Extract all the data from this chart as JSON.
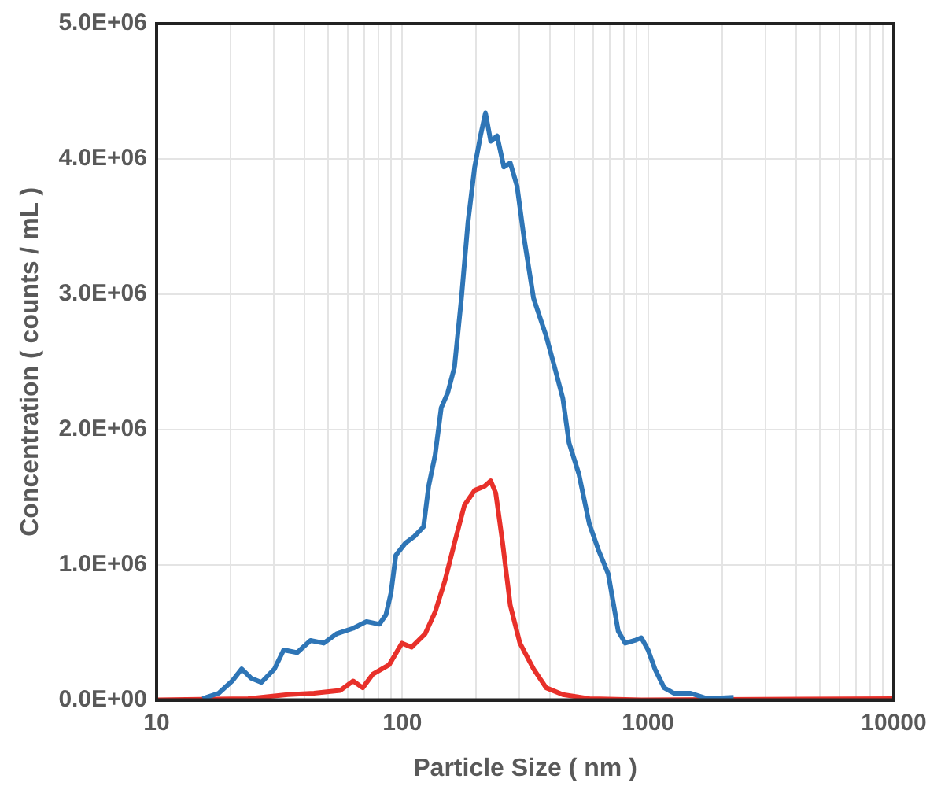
{
  "chart_data": {
    "type": "line",
    "xlabel": "Particle Size ( nm )",
    "ylabel": "Concentration ( counts / mL )",
    "log": "x",
    "grid": true,
    "legend": false,
    "marker": "none",
    "line_style": "solid",
    "xlim": [
      10,
      10000
    ],
    "xticks": [
      10,
      {
        "value": 20,
        "label": null
      },
      {
        "value": 30,
        "label": null
      },
      {
        "value": 40,
        "label": null
      },
      {
        "value": 50,
        "label": null
      },
      {
        "value": 60,
        "label": null
      },
      {
        "value": 70,
        "label": null
      },
      {
        "value": 80,
        "label": null
      },
      {
        "value": 90,
        "label": null
      },
      100,
      {
        "value": 200,
        "label": null
      },
      {
        "value": 300,
        "label": null
      },
      {
        "value": 400,
        "label": null
      },
      {
        "value": 500,
        "label": null
      },
      {
        "value": 600,
        "label": null
      },
      {
        "value": 700,
        "label": null
      },
      {
        "value": 800,
        "label": null
      },
      {
        "value": 900,
        "label": null
      },
      1000,
      {
        "value": 2000,
        "label": null
      },
      {
        "value": 3000,
        "label": null
      },
      {
        "value": 4000,
        "label": null
      },
      {
        "value": 5000,
        "label": null
      },
      {
        "value": 6000,
        "label": null
      },
      {
        "value": 7000,
        "label": null
      },
      {
        "value": 8000,
        "label": null
      },
      {
        "value": 9000,
        "label": null
      },
      10000
    ],
    "ylim": [
      0,
      5000000
    ],
    "yticks": [
      {
        "value": 0,
        "label": "0.0E+00"
      },
      {
        "value": 1000000,
        "label": "1.0E+06"
      },
      {
        "value": 2000000,
        "label": "2.0E+06"
      },
      {
        "value": 3000000,
        "label": "3.0E+06"
      },
      {
        "value": 4000000,
        "label": "4.0E+06"
      },
      {
        "value": 5000000,
        "label": "5.0E+06"
      }
    ],
    "series": [
      {
        "color": "#2e75b6",
        "x": [
          15.4,
          17.9,
          20.3,
          22.2,
          24.3,
          26.7,
          30.2,
          32.9,
          37.3,
          42.3,
          47.9,
          54.1,
          63.1,
          71.5,
          80.7,
          85.8,
          89.9,
          94.1,
          103,
          112,
          122,
          128,
          136,
          144,
          153,
          163,
          174,
          185,
          197,
          208,
          218,
          229,
          243,
          259,
          275,
          293,
          312,
          342,
          385,
          411,
          450,
          477,
          523,
          577,
          628,
          689,
          756,
          808,
          883,
          939,
          1000,
          1066,
          1163,
          1273,
          1490,
          1738,
          2230
        ],
        "values": [
          10000,
          50000,
          140000,
          230000,
          160000,
          130000,
          230000,
          370000,
          350000,
          440000,
          420000,
          490000,
          530000,
          580000,
          560000,
          630000,
          790000,
          1070000,
          1160000,
          1210000,
          1280000,
          1580000,
          1810000,
          2160000,
          2270000,
          2460000,
          2970000,
          3530000,
          3940000,
          4170000,
          4340000,
          4130000,
          4170000,
          3940000,
          3970000,
          3800000,
          3430000,
          2970000,
          2690000,
          2500000,
          2230000,
          1900000,
          1670000,
          1300000,
          1110000,
          930000,
          510000,
          420000,
          440000,
          460000,
          370000,
          230000,
          90000,
          50000,
          50000,
          10000,
          20000
        ]
      },
      {
        "color": "#e8302a",
        "x": [
          10,
          23.6,
          34.2,
          43.7,
          55.8,
          63.1,
          69,
          75.8,
          88.4,
          99.7,
          109,
          124,
          136,
          149,
          163,
          179,
          197,
          216,
          229,
          240,
          256,
          275,
          301,
          342,
          385,
          450,
          577,
          940,
          10000
        ],
        "values": [
          0,
          10000,
          40000,
          50000,
          70000,
          140000,
          90000,
          190000,
          260000,
          420000,
          390000,
          490000,
          650000,
          880000,
          1160000,
          1440000,
          1550000,
          1580000,
          1620000,
          1530000,
          1160000,
          700000,
          420000,
          230000,
          90000,
          40000,
          10000,
          0,
          10000
        ]
      }
    ]
  }
}
